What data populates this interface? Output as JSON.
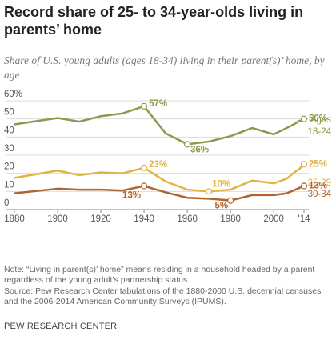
{
  "chart_data": {
    "type": "line",
    "title": "Record share of 25- to 34-year-olds living in parents’ home",
    "subtitle": "Share of U.S. young adults (ages 18-34) living in their parent(s)’ home, by age",
    "legend_title": "Ages",
    "x": [
      1880,
      1900,
      1910,
      1920,
      1930,
      1940,
      1950,
      1960,
      1970,
      1980,
      1990,
      2000,
      2006,
      2010,
      2012,
      2013,
      2014
    ],
    "series": [
      {
        "name": "18-24",
        "color": "#8c9a4b",
        "values": [
          47,
          50.5,
          48.5,
          51.5,
          53,
          57,
          42,
          36,
          37.5,
          40.5,
          45,
          41.5,
          45,
          47.5,
          49,
          49,
          50
        ],
        "value_labels": [
          null,
          null,
          null,
          null,
          null,
          "57%",
          null,
          "36%",
          null,
          null,
          null,
          null,
          null,
          null,
          null,
          null,
          "50%"
        ]
      },
      {
        "name": "25-29",
        "color": "#e0b443",
        "values": [
          17.5,
          21.5,
          19,
          20.5,
          20,
          23,
          15.5,
          11,
          10,
          11,
          16,
          14.5,
          17,
          21,
          22.5,
          24,
          25
        ],
        "value_labels": [
          null,
          null,
          null,
          null,
          null,
          "23%",
          null,
          null,
          "10%",
          null,
          null,
          null,
          null,
          null,
          null,
          null,
          "25%"
        ]
      },
      {
        "name": "30-34",
        "color": "#b0642f",
        "values": [
          9,
          11.5,
          11,
          11,
          10.5,
          13,
          9.5,
          6.5,
          6,
          5,
          8,
          8,
          9,
          11,
          12,
          12.5,
          13
        ],
        "value_labels": [
          null,
          null,
          null,
          null,
          null,
          "13%",
          null,
          null,
          null,
          "5%",
          null,
          null,
          null,
          null,
          null,
          null,
          "13%"
        ]
      }
    ],
    "xlim": [
      1880,
      2014
    ],
    "xticks": [
      1880,
      1900,
      1920,
      1940,
      1960,
      1980,
      2000,
      {
        "value": 2014,
        "label": "'14"
      }
    ],
    "ylim": [
      0,
      60
    ],
    "yticks": [
      0,
      10,
      20,
      30,
      40,
      {
        "value": 50,
        "label": "50"
      },
      {
        "value": 60,
        "label": "60%"
      }
    ],
    "grid": true,
    "legend": "right",
    "note": "Note: “Living in parent(s)’ home” means residing in a household headed by a parent regardless of the young adult’s partnership status.",
    "source": "Source: Pew Research Center tabulations of the 1880-2000 U.S. decennial censuses and the 2006-2014 American Community Surveys (IPUMS).",
    "footer": "PEW RESEARCH CENTER"
  }
}
